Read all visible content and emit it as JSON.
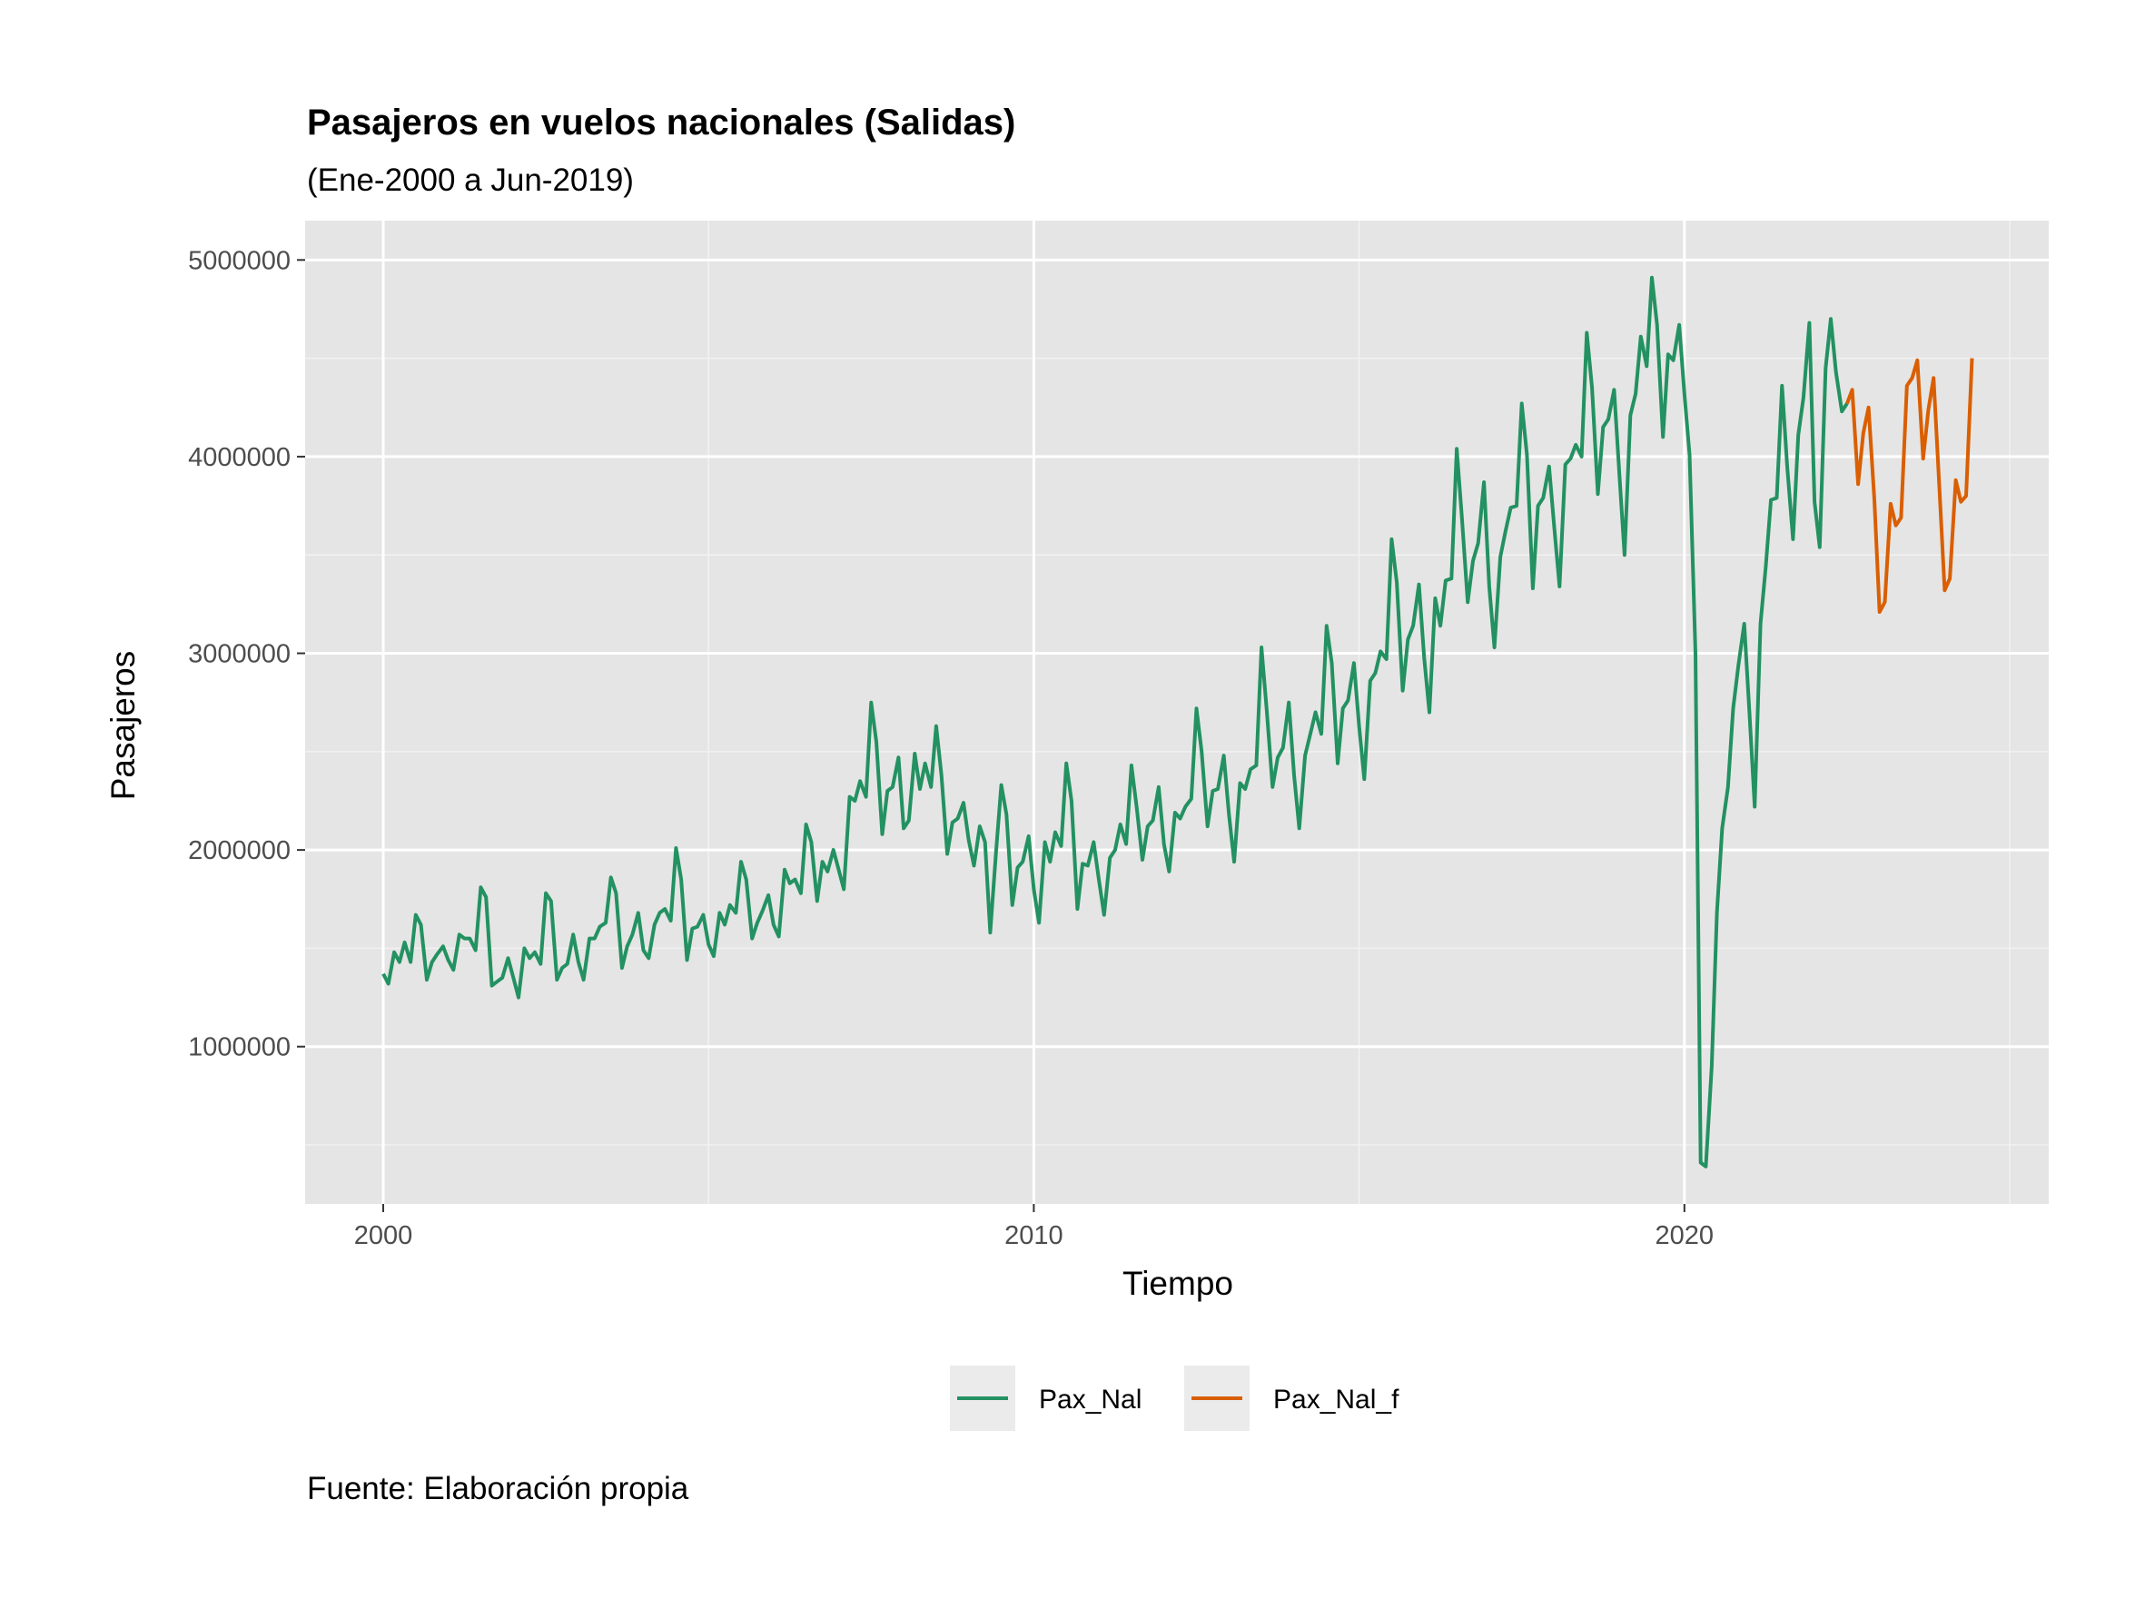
{
  "chart_data": {
    "type": "line",
    "title": "Pasajeros en vuelos nacionales (Salidas)",
    "subtitle": "(Ene-2000 a Jun-2019)",
    "caption": "Fuente: Elaboración propia",
    "xlabel": "Tiempo",
    "ylabel": "Pasajeros",
    "xlim": [
      1998.8,
      2025.6
    ],
    "ylim": [
      200000,
      5200000
    ],
    "x_ticks": [
      2000,
      2010,
      2020
    ],
    "x_tick_labels": [
      "2000",
      "2010",
      "2020"
    ],
    "x_minor_ticks": [
      2005,
      2015,
      2025
    ],
    "y_ticks": [
      1000000,
      2000000,
      3000000,
      4000000,
      5000000
    ],
    "y_tick_labels": [
      "1000000",
      "2000000",
      "3000000",
      "4000000",
      "5000000"
    ],
    "y_minor_ticks": [
      500000,
      1500000,
      2500000,
      3500000,
      4500000
    ],
    "grid": true,
    "legend_position": "bottom",
    "background": "#e5e5e5",
    "series": [
      {
        "name": "Pax_Nal",
        "color": "#239161",
        "x": [
          2000.0,
          2000.08,
          2000.17,
          2000.25,
          2000.33,
          2000.42,
          2000.5,
          2000.58,
          2000.67,
          2000.75,
          2000.83,
          2000.92,
          2001.0,
          2001.08,
          2001.17,
          2001.25,
          2001.33,
          2001.42,
          2001.5,
          2001.58,
          2001.67,
          2001.75,
          2001.83,
          2001.92,
          2002.0,
          2002.08,
          2002.17,
          2002.25,
          2002.33,
          2002.42,
          2002.5,
          2002.58,
          2002.67,
          2002.75,
          2002.83,
          2002.92,
          2003.0,
          2003.08,
          2003.17,
          2003.25,
          2003.33,
          2003.42,
          2003.5,
          2003.58,
          2003.67,
          2003.75,
          2003.83,
          2003.92,
          2004.0,
          2004.08,
          2004.17,
          2004.25,
          2004.33,
          2004.42,
          2004.5,
          2004.58,
          2004.67,
          2004.75,
          2004.83,
          2004.92,
          2005.0,
          2005.08,
          2005.17,
          2005.25,
          2005.33,
          2005.42,
          2005.5,
          2005.58,
          2005.67,
          2005.75,
          2005.83,
          2005.92,
          2006.0,
          2006.08,
          2006.17,
          2006.25,
          2006.33,
          2006.42,
          2006.5,
          2006.58,
          2006.67,
          2006.75,
          2006.83,
          2006.92,
          2007.0,
          2007.08,
          2007.17,
          2007.25,
          2007.33,
          2007.42,
          2007.5,
          2007.58,
          2007.67,
          2007.75,
          2007.83,
          2007.92,
          2008.0,
          2008.08,
          2008.17,
          2008.25,
          2008.33,
          2008.42,
          2008.5,
          2008.58,
          2008.67,
          2008.75,
          2008.83,
          2008.92,
          2009.0,
          2009.08,
          2009.17,
          2009.25,
          2009.33,
          2009.42,
          2009.5,
          2009.58,
          2009.67,
          2009.75,
          2009.83,
          2009.92,
          2010.0,
          2010.08,
          2010.17,
          2010.25,
          2010.33,
          2010.42,
          2010.5,
          2010.58,
          2010.67,
          2010.75,
          2010.83,
          2010.92,
          2011.0,
          2011.08,
          2011.17,
          2011.25,
          2011.33,
          2011.42,
          2011.5,
          2011.58,
          2011.67,
          2011.75,
          2011.83,
          2011.92,
          2012.0,
          2012.08,
          2012.17,
          2012.25,
          2012.33,
          2012.42,
          2012.5,
          2012.58,
          2012.67,
          2012.75,
          2012.83,
          2012.92,
          2013.0,
          2013.08,
          2013.17,
          2013.25,
          2013.33,
          2013.42,
          2013.5,
          2013.58,
          2013.67,
          2013.75,
          2013.83,
          2013.92,
          2014.0,
          2014.08,
          2014.17,
          2014.25,
          2014.33,
          2014.42,
          2014.5,
          2014.58,
          2014.67,
          2014.75,
          2014.83,
          2014.92,
          2015.0,
          2015.08,
          2015.17,
          2015.25,
          2015.33,
          2015.42,
          2015.5,
          2015.58,
          2015.67,
          2015.75,
          2015.83,
          2015.92,
          2016.0,
          2016.08,
          2016.17,
          2016.25,
          2016.33,
          2016.42,
          2016.5,
          2016.58,
          2016.67,
          2016.75,
          2016.83,
          2016.92,
          2017.0,
          2017.08,
          2017.17,
          2017.25,
          2017.33,
          2017.42,
          2017.5,
          2017.58,
          2017.67,
          2017.75,
          2017.83,
          2017.92,
          2018.0,
          2018.08,
          2018.17,
          2018.25,
          2018.33,
          2018.42,
          2018.5,
          2018.58,
          2018.67,
          2018.75,
          2018.83,
          2018.92,
          2019.0,
          2019.08,
          2019.17,
          2019.25,
          2019.33,
          2019.42,
          2019.5,
          2019.58,
          2019.67,
          2019.75,
          2019.83,
          2019.92,
          2020.0,
          2020.08,
          2020.17,
          2020.25,
          2020.33,
          2020.42,
          2020.5,
          2020.58,
          2020.67,
          2020.75,
          2020.83,
          2020.92,
          2021.0,
          2021.08,
          2021.17,
          2021.25,
          2021.33,
          2021.42,
          2021.5,
          2021.58,
          2021.67,
          2021.75,
          2021.83,
          2021.92,
          2022.0,
          2022.08,
          2022.17,
          2022.25,
          2022.33,
          2022.42,
          2022.5
        ],
        "values": [
          1370000,
          1320000,
          1480000,
          1430000,
          1530000,
          1430000,
          1670000,
          1620000,
          1340000,
          1430000,
          1470000,
          1510000,
          1440000,
          1390000,
          1570000,
          1550000,
          1550000,
          1490000,
          1810000,
          1760000,
          1310000,
          1330000,
          1350000,
          1450000,
          1350000,
          1250000,
          1500000,
          1450000,
          1480000,
          1420000,
          1780000,
          1740000,
          1340000,
          1400000,
          1420000,
          1570000,
          1430000,
          1340000,
          1550000,
          1550000,
          1610000,
          1630000,
          1860000,
          1780000,
          1400000,
          1510000,
          1570000,
          1680000,
          1490000,
          1450000,
          1620000,
          1680000,
          1700000,
          1640000,
          2010000,
          1850000,
          1440000,
          1600000,
          1610000,
          1670000,
          1520000,
          1460000,
          1680000,
          1620000,
          1720000,
          1680000,
          1940000,
          1850000,
          1550000,
          1630000,
          1690000,
          1770000,
          1620000,
          1560000,
          1900000,
          1830000,
          1850000,
          1780000,
          2130000,
          2040000,
          1740000,
          1940000,
          1890000,
          2000000,
          1900000,
          1800000,
          2270000,
          2250000,
          2350000,
          2270000,
          2750000,
          2550000,
          2080000,
          2300000,
          2320000,
          2470000,
          2110000,
          2150000,
          2490000,
          2310000,
          2440000,
          2320000,
          2630000,
          2380000,
          1980000,
          2140000,
          2160000,
          2240000,
          2050000,
          1920000,
          2120000,
          2040000,
          1580000,
          1990000,
          2330000,
          2180000,
          1720000,
          1910000,
          1940000,
          2070000,
          1800000,
          1630000,
          2040000,
          1940000,
          2090000,
          2020000,
          2440000,
          2250000,
          1700000,
          1930000,
          1920000,
          2040000,
          1850000,
          1670000,
          1960000,
          2000000,
          2130000,
          2030000,
          2430000,
          2220000,
          1950000,
          2120000,
          2150000,
          2320000,
          2030000,
          1890000,
          2190000,
          2160000,
          2220000,
          2260000,
          2720000,
          2500000,
          2120000,
          2300000,
          2310000,
          2480000,
          2180000,
          1940000,
          2340000,
          2310000,
          2410000,
          2430000,
          3030000,
          2710000,
          2320000,
          2470000,
          2520000,
          2750000,
          2380000,
          2110000,
          2480000,
          2590000,
          2700000,
          2590000,
          3140000,
          2950000,
          2440000,
          2720000,
          2760000,
          2950000,
          2630000,
          2360000,
          2860000,
          2900000,
          3010000,
          2970000,
          3580000,
          3360000,
          2810000,
          3070000,
          3140000,
          3350000,
          2980000,
          2700000,
          3280000,
          3140000,
          3370000,
          3380000,
          4040000,
          3690000,
          3260000,
          3470000,
          3560000,
          3870000,
          3340000,
          3030000,
          3490000,
          3620000,
          3740000,
          3750000,
          4270000,
          4010000,
          3330000,
          3750000,
          3790000,
          3950000,
          3640000,
          3340000,
          3960000,
          3990000,
          4060000,
          4000000,
          4630000,
          4350000,
          3810000,
          4150000,
          4190000,
          4340000,
          3910000,
          3500000,
          4210000,
          4320000,
          4610000,
          4460000,
          4910000,
          4670000,
          4100000,
          4520000,
          4490000,
          4670000,
          4320000,
          4010000,
          3000000,
          410000,
          390000,
          900000,
          1680000,
          2110000,
          2320000,
          2720000,
          2940000,
          3150000,
          2700000,
          2220000,
          3150000,
          3440000,
          3780000,
          3790000,
          4360000,
          3950000,
          3580000,
          4110000,
          4300000,
          4680000,
          3770000,
          3540000,
          4450000,
          4700000,
          4430000,
          4230000,
          4270000
        ]
      },
      {
        "name": "Pax_Nal_f",
        "color": "#d95f02",
        "x": [
          2022.5,
          2022.58,
          2022.67,
          2022.75,
          2022.83,
          2022.92,
          2023.0,
          2023.08,
          2023.17,
          2023.25,
          2023.33,
          2023.42,
          2023.5,
          2023.58,
          2023.67,
          2023.75,
          2023.83,
          2023.92,
          2024.0,
          2024.08,
          2024.17,
          2024.25,
          2024.33,
          2024.42
        ],
        "values": [
          4270000,
          4340000,
          3860000,
          4120000,
          4250000,
          3780000,
          3210000,
          3260000,
          3760000,
          3650000,
          3690000,
          4360000,
          4400000,
          4490000,
          3990000,
          4240000,
          4400000,
          3840000,
          3320000,
          3380000,
          3880000,
          3770000,
          3800000,
          4500000
        ]
      }
    ]
  }
}
